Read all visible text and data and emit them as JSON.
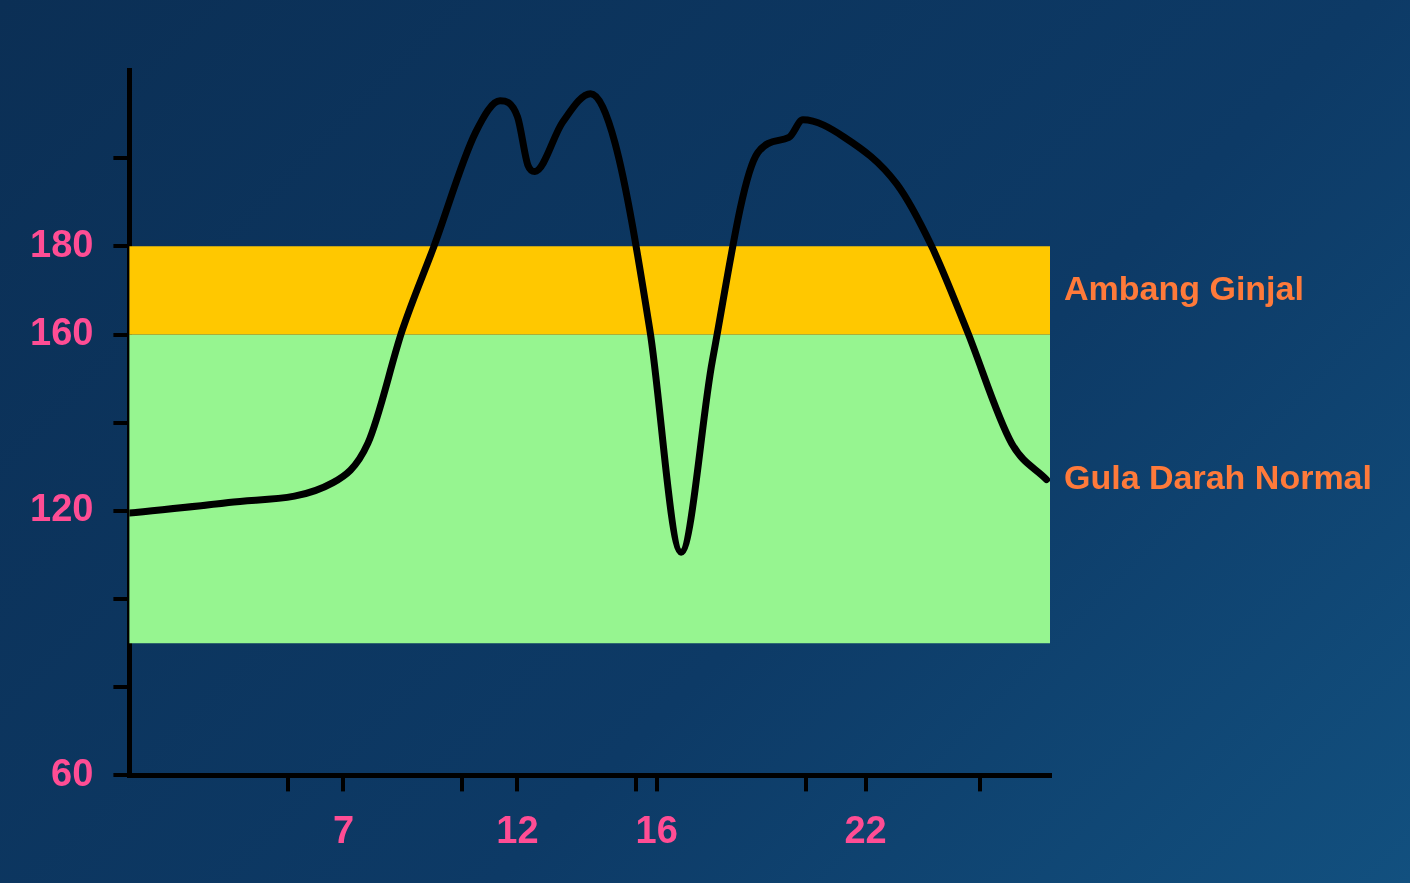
{
  "chart_data": {
    "type": "line",
    "xlim": [
      0.85,
      27.3
    ],
    "ylim": [
      60,
      220
    ],
    "xticks": [
      {
        "value": 5.4,
        "label": null
      },
      7,
      {
        "value": 10.4,
        "label": null
      },
      12,
      {
        "value": 15.4,
        "label": null
      },
      16,
      {
        "value": 20.3,
        "label": null
      },
      22,
      {
        "value": 25.3,
        "label": null
      }
    ],
    "yticks": [
      60,
      {
        "value": 80,
        "label": null
      },
      {
        "value": 100,
        "label": null
      },
      120,
      {
        "value": 140,
        "label": null
      },
      160,
      180,
      {
        "value": 200,
        "label": null
      }
    ],
    "series": [
      {
        "color": "#000000",
        "x": [
          0.85,
          3.7,
          6.7,
          7.7,
          8.7,
          9.6,
          10.8,
          11.5,
          12.0,
          12.3,
          12.5,
          13.3,
          14.1,
          14.8,
          15.8,
          16.7,
          17.6,
          18.9,
          19.8,
          20.2,
          21.4,
          22.9,
          23.9,
          24.9,
          26.2,
          27.2
        ],
        "values": [
          119.5,
          121.9,
          126.4,
          135.3,
          161.2,
          180,
          205.9,
          213,
          209.4,
          198.4,
          197,
          208.2,
          214.6,
          203.5,
          161.2,
          110.6,
          154.1,
          201.2,
          204.7,
          208.7,
          204.7,
          194.1,
          180,
          161.2,
          135.3,
          127.1
        ]
      }
    ],
    "bands": [
      {
        "axis": "y",
        "from": 90,
        "to": 160,
        "label": "Gula Darah Normal",
        "color": "#96f590"
      },
      {
        "axis": "y",
        "from": 160,
        "to": 180,
        "label": "Ambang Ginjal",
        "color": "#ffc800"
      }
    ],
    "grid": false,
    "legend": false,
    "marker": "none"
  }
}
